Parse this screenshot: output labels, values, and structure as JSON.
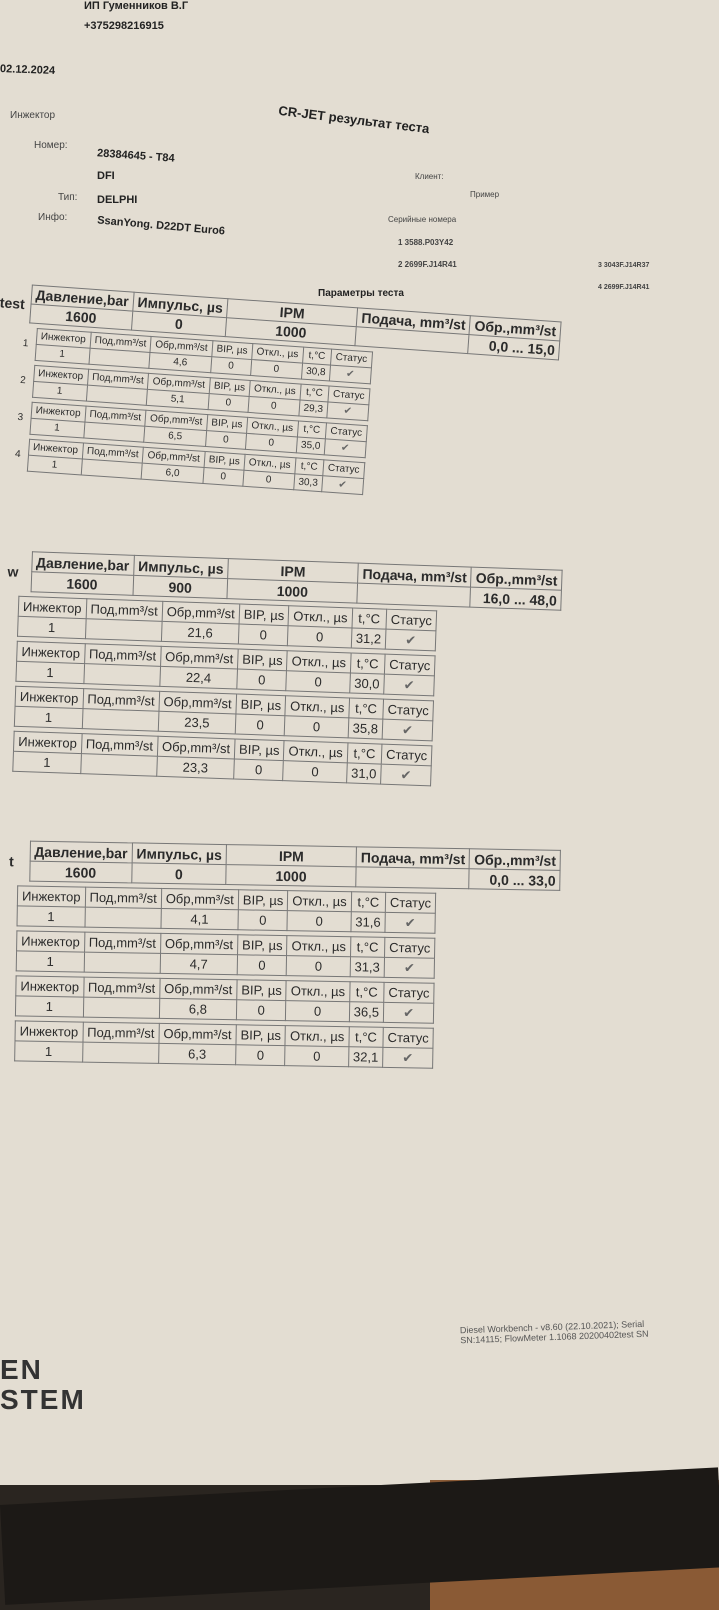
{
  "header": {
    "company": "ИП Гуменников В.Г",
    "phone": "+375298216915",
    "date": "02.12.2024",
    "title": "CR-JET результат теста",
    "injector_label": "Инжектор",
    "number_label": "Номер:",
    "number": "28384645 - T84",
    "number2": "DFI",
    "type_label": "Тип:",
    "type": "DELPHI",
    "info_label": "Инфо:",
    "info": "SsanYong. D22DT Euro6",
    "client_label": "Клиент:",
    "client": "Пример",
    "serials_label": "Серийные номера",
    "serials": [
      "1  3588.P03Y42",
      "2  2699F.J14R41",
      "3  3043F.J14R37",
      "4  2699F.J14R41"
    ]
  },
  "params_label": "Параметры теста",
  "col_headers": {
    "pressure": "Давление,bar",
    "pulse": "Импульс, µs",
    "ipm": "IPM",
    "feed": "Подача, mm³/st",
    "return": "Обр.,mm³/st"
  },
  "sub_headers": [
    "Инжектор",
    "Под,mm³/st",
    "Обр,mm³/st",
    "BIP, µs",
    "Откл., µs",
    "t,°C",
    "Статус"
  ],
  "sections": [
    {
      "side": "test",
      "pressure": "1600",
      "pulse": "0",
      "ipm": "1000",
      "feed": "",
      "range": "0,0 ... 15,0",
      "rows": [
        {
          "n": "1",
          "inj": "1",
          "feed": "",
          "ret": "4,6",
          "bip": "0",
          "dev": "0",
          "t": "30,8",
          "status": "✔"
        },
        {
          "n": "2",
          "inj": "1",
          "feed": "",
          "ret": "5,1",
          "bip": "0",
          "dev": "0",
          "t": "29,3",
          "status": "✔"
        },
        {
          "n": "3",
          "inj": "1",
          "feed": "",
          "ret": "6,5",
          "bip": "0",
          "dev": "0",
          "t": "35,0",
          "status": "✔"
        },
        {
          "n": "4",
          "inj": "1",
          "feed": "",
          "ret": "6,0",
          "bip": "0",
          "dev": "0",
          "t": "30,3",
          "status": "✔"
        }
      ]
    },
    {
      "side": "w",
      "pressure": "1600",
      "pulse": "900",
      "ipm": "1000",
      "feed": "",
      "range": "16,0 ... 48,0",
      "rows": [
        {
          "inj": "1",
          "feed": "",
          "ret": "21,6",
          "bip": "0",
          "dev": "0",
          "t": "31,2",
          "status": "✔"
        },
        {
          "inj": "1",
          "feed": "",
          "ret": "22,4",
          "bip": "0",
          "dev": "0",
          "t": "30,0",
          "status": "✔"
        },
        {
          "inj": "1",
          "feed": "",
          "ret": "23,5",
          "bip": "0",
          "dev": "0",
          "t": "35,8",
          "status": "✔"
        },
        {
          "inj": "1",
          "feed": "",
          "ret": "23,3",
          "bip": "0",
          "dev": "0",
          "t": "31,0",
          "status": "✔"
        }
      ]
    },
    {
      "side": "t",
      "pressure": "1600",
      "pulse": "0",
      "ipm": "1000",
      "feed": "",
      "range": "0,0 ... 33,0",
      "rows": [
        {
          "inj": "1",
          "feed": "",
          "ret": "4,1",
          "bip": "0",
          "dev": "0",
          "t": "31,6",
          "status": "✔"
        },
        {
          "inj": "1",
          "feed": "",
          "ret": "4,7",
          "bip": "0",
          "dev": "0",
          "t": "31,3",
          "status": "✔"
        },
        {
          "inj": "1",
          "feed": "",
          "ret": "6,8",
          "bip": "0",
          "dev": "0",
          "t": "36,5",
          "status": "✔"
        },
        {
          "inj": "1",
          "feed": "",
          "ret": "6,3",
          "bip": "0",
          "dev": "0",
          "t": "32,1",
          "status": "✔"
        }
      ]
    }
  ],
  "footer": {
    "line1": "Diesel Workbench - v8.60 (22.10.2021); Serial",
    "line2": "SN:14115; FlowMeter 1.1068 20200402test SN",
    "logo1": "EN",
    "logo2": "STEM"
  }
}
